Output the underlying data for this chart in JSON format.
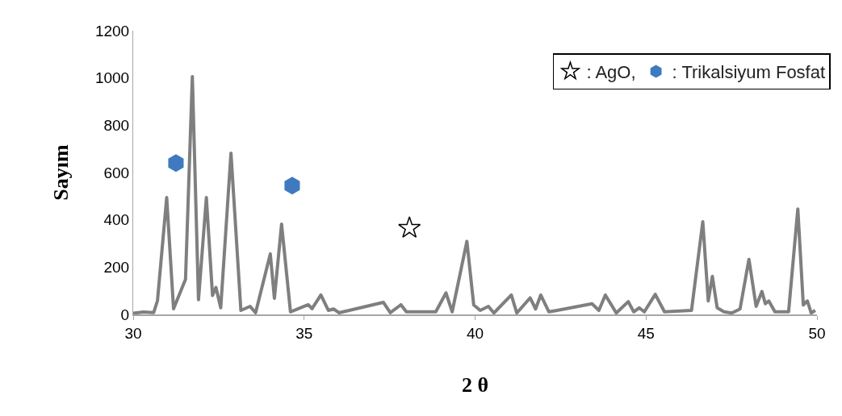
{
  "chart_data": {
    "type": "line",
    "xlabel": "2 θ",
    "ylabel": "Sayım",
    "xlim": [
      30,
      50
    ],
    "xticks": [
      30,
      35,
      40,
      45,
      50
    ],
    "ylim": [
      0,
      1200
    ],
    "yticks": [
      0,
      200,
      400,
      600,
      800,
      1000,
      1200
    ],
    "legend": "top right",
    "line_style": "solid",
    "series": [
      {
        "color": "#7f7f7f",
        "marker": "none",
        "x": [
          30.0,
          30.3,
          30.6,
          30.71,
          30.98,
          31.18,
          31.53,
          31.73,
          31.91,
          32.14,
          32.32,
          32.42,
          32.56,
          32.86,
          33.15,
          33.42,
          33.58,
          34.01,
          34.13,
          34.34,
          34.6,
          35.12,
          35.23,
          35.49,
          35.71,
          35.86,
          36.02,
          37.32,
          37.52,
          37.83,
          37.99,
          38.85,
          39.15,
          39.33,
          39.76,
          39.96,
          40.15,
          40.39,
          40.55,
          41.06,
          41.22,
          41.61,
          41.77,
          41.92,
          42.16,
          42.4,
          43.42,
          43.62,
          43.81,
          44.13,
          44.48,
          44.64,
          44.8,
          44.95,
          45.27,
          45.54,
          46.33,
          46.66,
          46.82,
          46.94,
          47.08,
          47.28,
          47.51,
          47.75,
          48.01,
          48.22,
          48.39,
          48.49,
          48.59,
          48.77,
          49.17,
          49.44,
          49.6,
          49.72,
          49.83,
          49.95
        ],
        "values": [
          5,
          10,
          8,
          58,
          494,
          24,
          148,
          1006,
          62,
          494,
          80,
          114,
          28,
          682,
          17,
          34,
          7,
          256,
          68,
          382,
          11,
          41,
          24,
          82,
          17,
          23,
          7,
          51,
          7,
          41,
          11,
          11,
          91,
          11,
          309,
          40,
          17,
          34,
          6,
          82,
          6,
          70,
          23,
          82,
          11,
          17,
          45,
          17,
          82,
          6,
          54,
          11,
          28,
          11,
          85,
          11,
          17,
          392,
          57,
          161,
          28,
          11,
          6,
          23,
          233,
          34,
          97,
          45,
          57,
          11,
          11,
          446,
          40,
          57,
          6,
          17
        ]
      },
      {
        "type": "scatter",
        "name": ": AgO,",
        "color": "#000000",
        "marker": "star",
        "x": [
          38.08
        ],
        "values": [
          365
        ]
      },
      {
        "type": "scatter",
        "name": ": Trikalsiyum Fosfat",
        "color": "#3f7abf",
        "x": [
          31.25,
          34.65
        ],
        "values": [
          640,
          545
        ]
      }
    ]
  }
}
